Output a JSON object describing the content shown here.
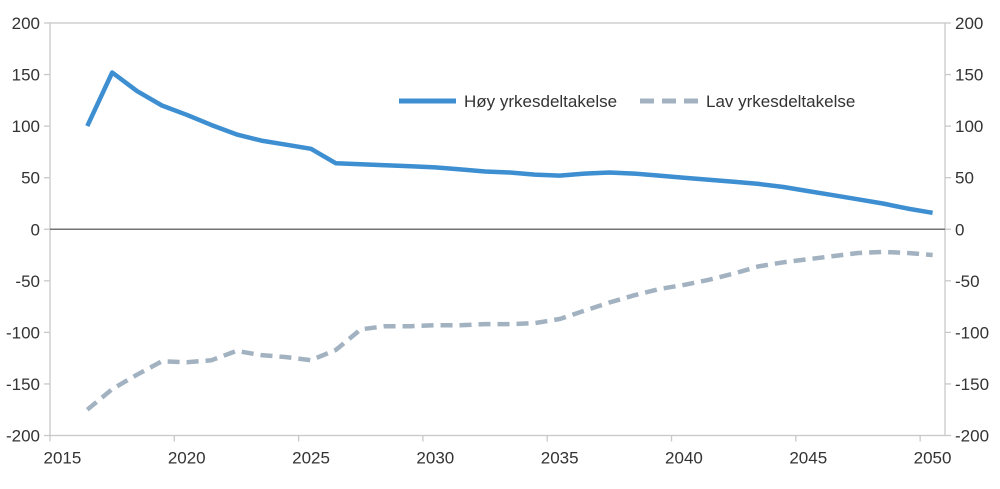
{
  "chart_data": {
    "type": "line",
    "title": "",
    "xlabel": "",
    "ylabel": "",
    "x": [
      2016,
      2017,
      2018,
      2019,
      2020,
      2021,
      2022,
      2023,
      2024,
      2025,
      2026,
      2027,
      2028,
      2029,
      2030,
      2031,
      2032,
      2033,
      2034,
      2035,
      2036,
      2037,
      2038,
      2039,
      2040,
      2041,
      2042,
      2043,
      2044,
      2045,
      2046,
      2047,
      2048,
      2049,
      2050
    ],
    "series": [
      {
        "name": "Høy yrkesdeltakelse",
        "style": "solid",
        "color": "#3D8FD1",
        "values": [
          100,
          152,
          134,
          120,
          111,
          101,
          92,
          86,
          82,
          78,
          64,
          63,
          62,
          61,
          60,
          58,
          56,
          55,
          53,
          52,
          54,
          55,
          54,
          52,
          50,
          48,
          46,
          44,
          41,
          37,
          33,
          29,
          25,
          20,
          16
        ]
      },
      {
        "name": "Lav yrkesdeltakelse",
        "style": "dashed",
        "color": "#A2B2C1",
        "values": [
          -175,
          -155,
          -141,
          -128,
          -129,
          -127,
          -118,
          -122,
          -124,
          -127,
          -117,
          -97,
          -94,
          -94,
          -93,
          -93,
          -92,
          -92,
          -91,
          -87,
          -79,
          -71,
          -64,
          -58,
          -54,
          -49,
          -43,
          -36,
          -32,
          -29,
          -26,
          -23,
          -22,
          -23,
          -25
        ]
      }
    ],
    "x_axis_categories": [
      2015,
      2050
    ],
    "xticks": [
      2015,
      2020,
      2025,
      2030,
      2035,
      2040,
      2045,
      2050
    ],
    "yticks": [
      200,
      150,
      100,
      50,
      0,
      -50,
      -100,
      -150,
      -200
    ],
    "ylim": [
      -200,
      200
    ],
    "grid": false,
    "zero_line": true,
    "dual_y_axis": true,
    "legend_position": "top-center",
    "axis_color": "#C8C8C8",
    "zero_line_color": "#737373",
    "text_color": "#333333"
  }
}
